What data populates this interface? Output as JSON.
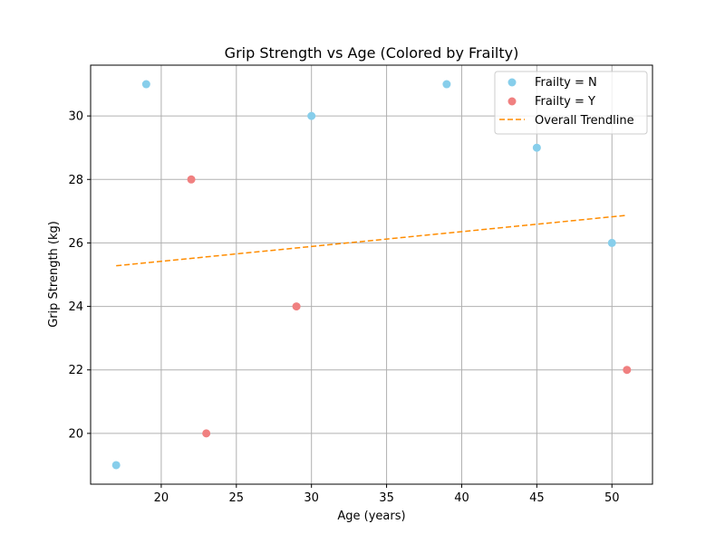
{
  "chart_data": {
    "type": "scatter",
    "title": "Grip Strength vs Age (Colored by Frailty)",
    "xlabel": "Age (years)",
    "ylabel": "Grip Strength (kg)",
    "xlim": [
      15.3,
      52.7
    ],
    "ylim": [
      18.4,
      31.6
    ],
    "xticks": [
      20,
      25,
      30,
      35,
      40,
      45,
      50
    ],
    "yticks": [
      20,
      22,
      24,
      26,
      28,
      30
    ],
    "grid": true,
    "legend_position": "top-right",
    "series": [
      {
        "name": "Frailty = N",
        "color": "#87ceeb",
        "points": [
          {
            "x": 17,
            "y": 19
          },
          {
            "x": 19,
            "y": 31
          },
          {
            "x": 30,
            "y": 30
          },
          {
            "x": 39,
            "y": 31
          },
          {
            "x": 45,
            "y": 29
          },
          {
            "x": 50,
            "y": 26
          }
        ]
      },
      {
        "name": "Frailty = Y",
        "color": "#f08080",
        "points": [
          {
            "x": 22,
            "y": 28
          },
          {
            "x": 23,
            "y": 20
          },
          {
            "x": 29,
            "y": 24
          },
          {
            "x": 51,
            "y": 22
          }
        ]
      }
    ],
    "trendline": {
      "name": "Overall Trendline",
      "color": "#ff8c00",
      "style": "dashed",
      "x": [
        17,
        51
      ],
      "y": [
        25.28,
        26.87
      ]
    }
  }
}
